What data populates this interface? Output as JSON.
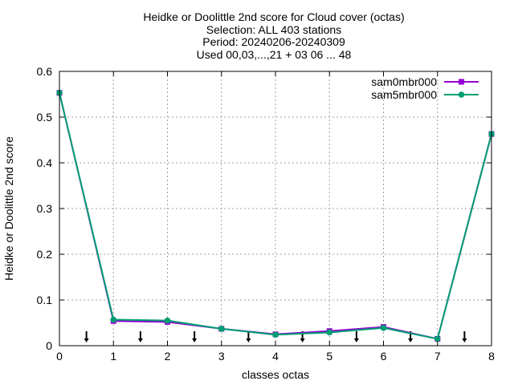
{
  "chart_data": {
    "type": "line",
    "title_lines": [
      "Heidke or Doolittle 2nd score  for Cloud cover (octas)",
      "Selection: ALL    403 stations",
      "Period: 20240206-20240309",
      "Used 00,03,...,21 + 03 06 ... 48"
    ],
    "xlabel": "classes octas",
    "ylabel": "Heidke or Doolittle 2nd score",
    "xlim": [
      0,
      8
    ],
    "ylim": [
      0,
      0.6
    ],
    "xticks": [
      "0",
      "1",
      "2",
      "3",
      "4",
      "5",
      "6",
      "7",
      "8"
    ],
    "yticks": [
      "0",
      "0.1",
      "0.2",
      "0.3",
      "0.4",
      "0.5",
      "0.6"
    ],
    "grid": true,
    "legend_position": "top-right",
    "x": [
      0,
      1,
      2,
      3,
      4,
      5,
      6,
      7,
      8
    ],
    "series": [
      {
        "name": "sam0mbr000",
        "color": "#9400d3",
        "marker": "square",
        "values": [
          0.553,
          0.054,
          0.052,
          0.037,
          0.025,
          0.032,
          0.041,
          0.015,
          0.463
        ]
      },
      {
        "name": "sam5mbr000",
        "color": "#009e73",
        "marker": "circle",
        "values": [
          0.553,
          0.057,
          0.055,
          0.037,
          0.024,
          0.029,
          0.039,
          0.015,
          0.463
        ]
      }
    ],
    "arrow_markers_x": [
      0.5,
      1.5,
      2.5,
      3.5,
      4.5,
      5.5,
      6.5,
      7.5
    ]
  }
}
